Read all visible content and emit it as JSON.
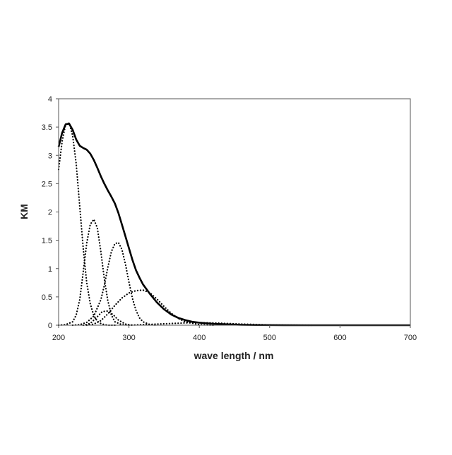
{
  "chart_data": {
    "type": "line",
    "title": "",
    "xlabel": "wave length / nm",
    "ylabel": "KM",
    "xlim": [
      200,
      700
    ],
    "ylim": [
      0,
      4
    ],
    "xticks": [
      200,
      300,
      400,
      500,
      600,
      700
    ],
    "yticks": [
      0,
      0.5,
      1,
      1.5,
      2,
      2.5,
      3,
      3.5,
      4
    ],
    "ytick_labels": [
      "0",
      "0.5",
      "1",
      "1.5",
      "2",
      "2.5",
      "3",
      "3.5",
      "4"
    ],
    "grid": false,
    "legend": "none",
    "colors": {
      "line": "#000000",
      "axis": "#555555"
    },
    "series": [
      {
        "style": "solid",
        "x": [
          200,
          205,
          210,
          215,
          220,
          225,
          230,
          235,
          240,
          245,
          250,
          255,
          260,
          265,
          270,
          275,
          280,
          285,
          290,
          295,
          300,
          305,
          310,
          315,
          320,
          330,
          340,
          350,
          360,
          370,
          380,
          390,
          400,
          420,
          440,
          460,
          480,
          500,
          520,
          550,
          600,
          650,
          700
        ],
        "y": [
          3.15,
          3.4,
          3.55,
          3.56,
          3.45,
          3.28,
          3.17,
          3.13,
          3.1,
          3.03,
          2.92,
          2.78,
          2.63,
          2.5,
          2.38,
          2.27,
          2.15,
          1.98,
          1.78,
          1.57,
          1.36,
          1.15,
          0.97,
          0.84,
          0.72,
          0.55,
          0.4,
          0.28,
          0.19,
          0.13,
          0.09,
          0.06,
          0.045,
          0.025,
          0.015,
          0.008,
          0.004,
          0.002,
          0.001,
          0,
          0,
          0,
          0
        ]
      },
      {
        "style": "dotted",
        "x": [
          200,
          205,
          210,
          215,
          220,
          225,
          230,
          235,
          240,
          245,
          250,
          255,
          260,
          265,
          270,
          280
        ],
        "y": [
          2.75,
          3.25,
          3.55,
          3.57,
          3.35,
          2.85,
          2.1,
          1.35,
          0.75,
          0.38,
          0.17,
          0.07,
          0.03,
          0.01,
          0,
          0
        ]
      },
      {
        "style": "dotted",
        "x": [
          200,
          210,
          220,
          225,
          230,
          235,
          240,
          245,
          250,
          255,
          260,
          265,
          270,
          275,
          280,
          290,
          300
        ],
        "y": [
          0,
          0.01,
          0.06,
          0.18,
          0.45,
          0.95,
          1.45,
          1.78,
          1.87,
          1.72,
          1.3,
          0.82,
          0.43,
          0.18,
          0.06,
          0.01,
          0
        ]
      },
      {
        "style": "dotted",
        "x": [
          220,
          230,
          240,
          250,
          260,
          265,
          270,
          275,
          280,
          285,
          290,
          295,
          300,
          305,
          310,
          315,
          320,
          330,
          340
        ],
        "y": [
          0,
          0.01,
          0.05,
          0.16,
          0.45,
          0.7,
          1.02,
          1.3,
          1.44,
          1.46,
          1.34,
          1.08,
          0.76,
          0.47,
          0.26,
          0.13,
          0.06,
          0.01,
          0
        ]
      },
      {
        "style": "dotted",
        "x": [
          240,
          250,
          260,
          270,
          280,
          290,
          300,
          310,
          320,
          330,
          340,
          350,
          360,
          370,
          380,
          400,
          420
        ],
        "y": [
          0,
          0.02,
          0.08,
          0.2,
          0.35,
          0.48,
          0.57,
          0.61,
          0.62,
          0.57,
          0.46,
          0.33,
          0.21,
          0.12,
          0.06,
          0.01,
          0
        ]
      },
      {
        "style": "dotted",
        "x": [
          235,
          245,
          255,
          262,
          270,
          278,
          285,
          295,
          305
        ],
        "y": [
          0,
          0.03,
          0.15,
          0.24,
          0.25,
          0.18,
          0.09,
          0.02,
          0
        ]
      },
      {
        "style": "dotted",
        "x": [
          300,
          320,
          340,
          360,
          380,
          400,
          420,
          440,
          460,
          480,
          500,
          520,
          540,
          560
        ],
        "y": [
          0,
          0.01,
          0.02,
          0.03,
          0.04,
          0.045,
          0.04,
          0.03,
          0.02,
          0.012,
          0.006,
          0.003,
          0.001,
          0
        ]
      }
    ]
  }
}
